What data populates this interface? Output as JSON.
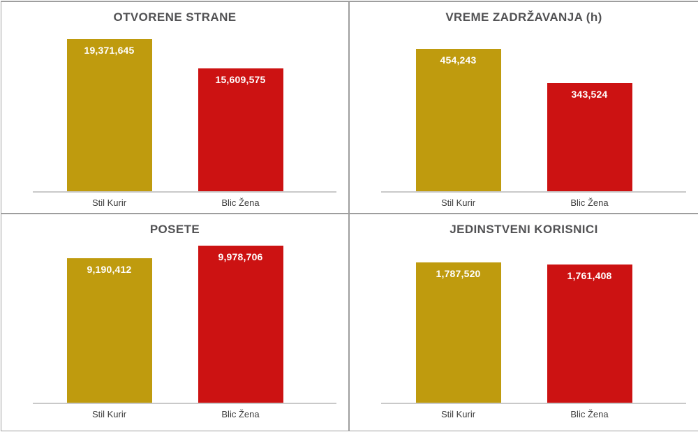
{
  "page": {
    "background": "#ffffff",
    "series_names": [
      "Stil Kurir",
      "Blic Žena"
    ]
  },
  "colors": {
    "stil_kurir_bar": "#BF9B0E",
    "blic_zena_bar": "#CC1212",
    "title_text": "#525254",
    "category_text": "#3d3d3d",
    "value_text": "#ffffff",
    "axis_line": "#c9c9c9",
    "grid_border": "#9e9e9e"
  },
  "chart_data": [
    {
      "type": "bar",
      "title": "OTVORENE STRANE",
      "categories": [
        "Stil Kurir",
        "Blic Žena"
      ],
      "values": [
        19371645,
        15609575
      ],
      "value_labels": [
        "19,371,645",
        "15,609,575"
      ],
      "ylim": [
        0,
        20000000
      ],
      "bar_colors": [
        "#BF9B0E",
        "#CC1212"
      ],
      "grid": false,
      "legend": "none",
      "value_label_position": "inside-top"
    },
    {
      "type": "bar",
      "title": "VREME ZADRŽAVANJA (h)",
      "categories": [
        "Stil Kurir",
        "Blic Žena"
      ],
      "values": [
        454243,
        343524
      ],
      "value_labels": [
        "454,243",
        "343,524"
      ],
      "ylim": [
        0,
        500000
      ],
      "bar_colors": [
        "#BF9B0E",
        "#CC1212"
      ],
      "grid": false,
      "legend": "none",
      "value_label_position": "inside-top"
    },
    {
      "type": "bar",
      "title": "POSETE",
      "categories": [
        "Stil Kurir",
        "Blic Žena"
      ],
      "values": [
        9190412,
        9978706
      ],
      "value_labels": [
        "9,190,412",
        "9,978,706"
      ],
      "ylim": [
        0,
        10000000
      ],
      "bar_colors": [
        "#BF9B0E",
        "#CC1212"
      ],
      "grid": false,
      "legend": "none",
      "value_label_position": "inside-top"
    },
    {
      "type": "bar",
      "title": "JEDINSTVENI KORISNICI",
      "categories": [
        "Stil Kurir",
        "Blic Žena"
      ],
      "values": [
        1787520,
        1761408
      ],
      "value_labels": [
        "1,787,520",
        "1,761,408"
      ],
      "ylim": [
        0,
        2000000
      ],
      "bar_colors": [
        "#BF9B0E",
        "#CC1212"
      ],
      "grid": false,
      "legend": "none",
      "value_label_position": "inside-top"
    }
  ]
}
